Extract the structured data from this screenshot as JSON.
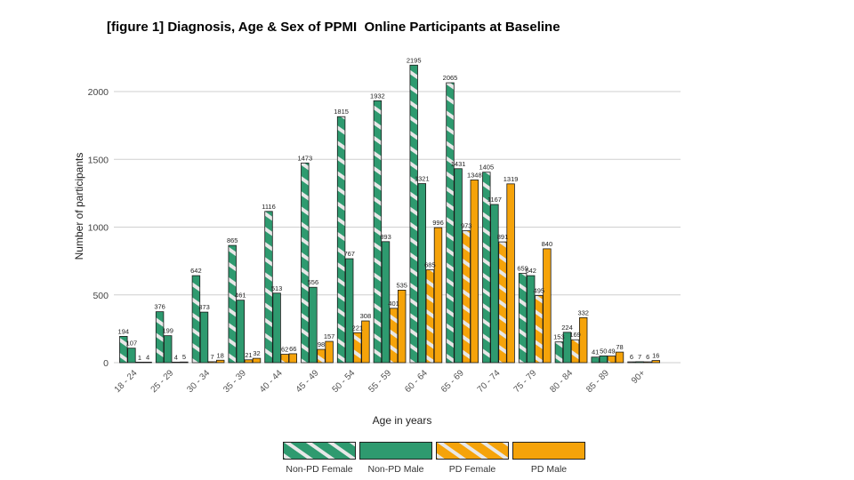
{
  "chart_data": {
    "type": "bar",
    "title": "[figure 1] Diagnosis, Age & Sex of PPMI  Online Participants at Baseline",
    "xlabel": "Age in years",
    "ylabel": "Number of participants",
    "ylim": [
      0,
      2250
    ],
    "yticks": [
      "0",
      "500",
      "1000",
      "1500",
      "2000"
    ],
    "grid": "horizontal",
    "legend_position": "bottom",
    "categories": [
      "18 - 24",
      "25 - 29",
      "30 - 34",
      "35 - 39",
      "40 - 44",
      "45 - 49",
      "50 - 54",
      "55 - 59",
      "60 - 64",
      "65 - 69",
      "70 - 74",
      "75 - 79",
      "80 - 84",
      "85 - 89",
      "90+"
    ],
    "series": [
      {
        "name": "Non-PD Female",
        "color": "#2e9a6f",
        "pattern": "hatched",
        "values": [
          194,
          376,
          642,
          865,
          1116,
          1473,
          1815,
          1932,
          2195,
          2065,
          1405,
          659,
          153,
          41,
          6
        ]
      },
      {
        "name": "Non-PD Male",
        "color": "#2e9a6f",
        "pattern": "solid",
        "values": [
          107,
          199,
          373,
          461,
          513,
          556,
          767,
          893,
          1321,
          1431,
          1167,
          642,
          224,
          50,
          7
        ]
      },
      {
        "name": "PD Female",
        "color": "#f5a30a",
        "pattern": "hatched",
        "values": [
          1,
          4,
          7,
          21,
          62,
          98,
          221,
          401,
          685,
          973,
          891,
          495,
          169,
          49,
          6
        ]
      },
      {
        "name": "PD Male",
        "color": "#f5a30a",
        "pattern": "solid",
        "values": [
          4,
          5,
          18,
          32,
          66,
          157,
          308,
          535,
          996,
          1348,
          1319,
          840,
          332,
          78,
          16
        ]
      }
    ]
  }
}
